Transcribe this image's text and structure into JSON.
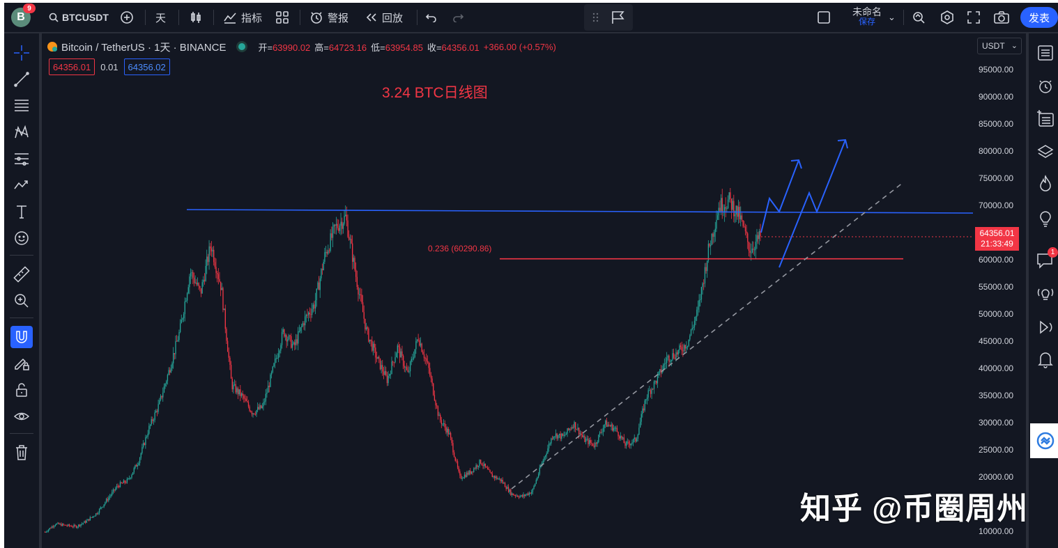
{
  "toolbar": {
    "avatar_letter": "B",
    "avatar_badge": "9",
    "symbol": "BTCUSDT",
    "interval": "天",
    "indicators": "指标",
    "alerts": "警报",
    "replay": "回放",
    "layout_name": "未命名",
    "save": "保存",
    "publish": "发表"
  },
  "legend": {
    "name": "Bitcoin / TetherUS · 1天 · BINANCE",
    "open_label": "开=",
    "open": "63990.02",
    "high_label": "高=",
    "high": "64723.16",
    "low_label": "低=",
    "low": "63954.85",
    "close_label": "收=",
    "close": "64356.01",
    "change": "+366.00 (+0.57%)"
  },
  "quote": {
    "sell": "64356.01",
    "spread": "0.01",
    "buy": "64356.02"
  },
  "currency": "USDT",
  "annotation_title": "3.24 BTC日线图",
  "fib_label": "0.236 (60290.86)",
  "price_tag": {
    "price": "64356.01",
    "countdown": "21:33:49"
  },
  "y_ticks": [
    "95000.00",
    "90000.00",
    "85000.00",
    "80000.00",
    "75000.00",
    "70000.00",
    "60000.00",
    "55000.00",
    "50000.00",
    "45000.00",
    "40000.00",
    "35000.00",
    "30000.00",
    "25000.00",
    "20000.00",
    "10000.00"
  ],
  "right_badge": "1",
  "watermark": "知乎 @币圈周州",
  "colors": {
    "up": "#26a69a",
    "down": "#f23645",
    "accent": "#2962ff",
    "background": "#131722",
    "annotation": "#f23645"
  },
  "chart_data": {
    "type": "candlestick",
    "symbol": "BTCUSDT",
    "ylim": [
      9000,
      97000
    ],
    "series": [
      {
        "name": "BTCUSDT",
        "values": [
          10000,
          11500,
          11200,
          11000,
          12000,
          13500,
          16000,
          18500,
          19500,
          23000,
          29000,
          33500,
          40000,
          47000,
          58000,
          54000,
          63000,
          55000,
          37000,
          35000,
          32000,
          33000,
          40000,
          47000,
          44000,
          49000,
          52000,
          61000,
          66000,
          68000,
          57000,
          47000,
          42000,
          38000,
          44000,
          39000,
          46000,
          40000,
          31000,
          28000,
          20000,
          21000,
          23000,
          20500,
          19500,
          17000,
          16500,
          17500,
          23000,
          28000,
          27500,
          30000,
          27000,
          26000,
          30000,
          29000,
          26000,
          27000,
          35000,
          38000,
          42000,
          43000,
          45000,
          51000,
          62000,
          70000,
          71000,
          68000,
          62000,
          64356
        ]
      }
    ],
    "annotations": {
      "horizontal_level": 69000,
      "fib_level": 60290.86,
      "trendline": [
        [
          18000,
          0.4
        ],
        [
          73000,
          0.95
        ]
      ]
    }
  }
}
